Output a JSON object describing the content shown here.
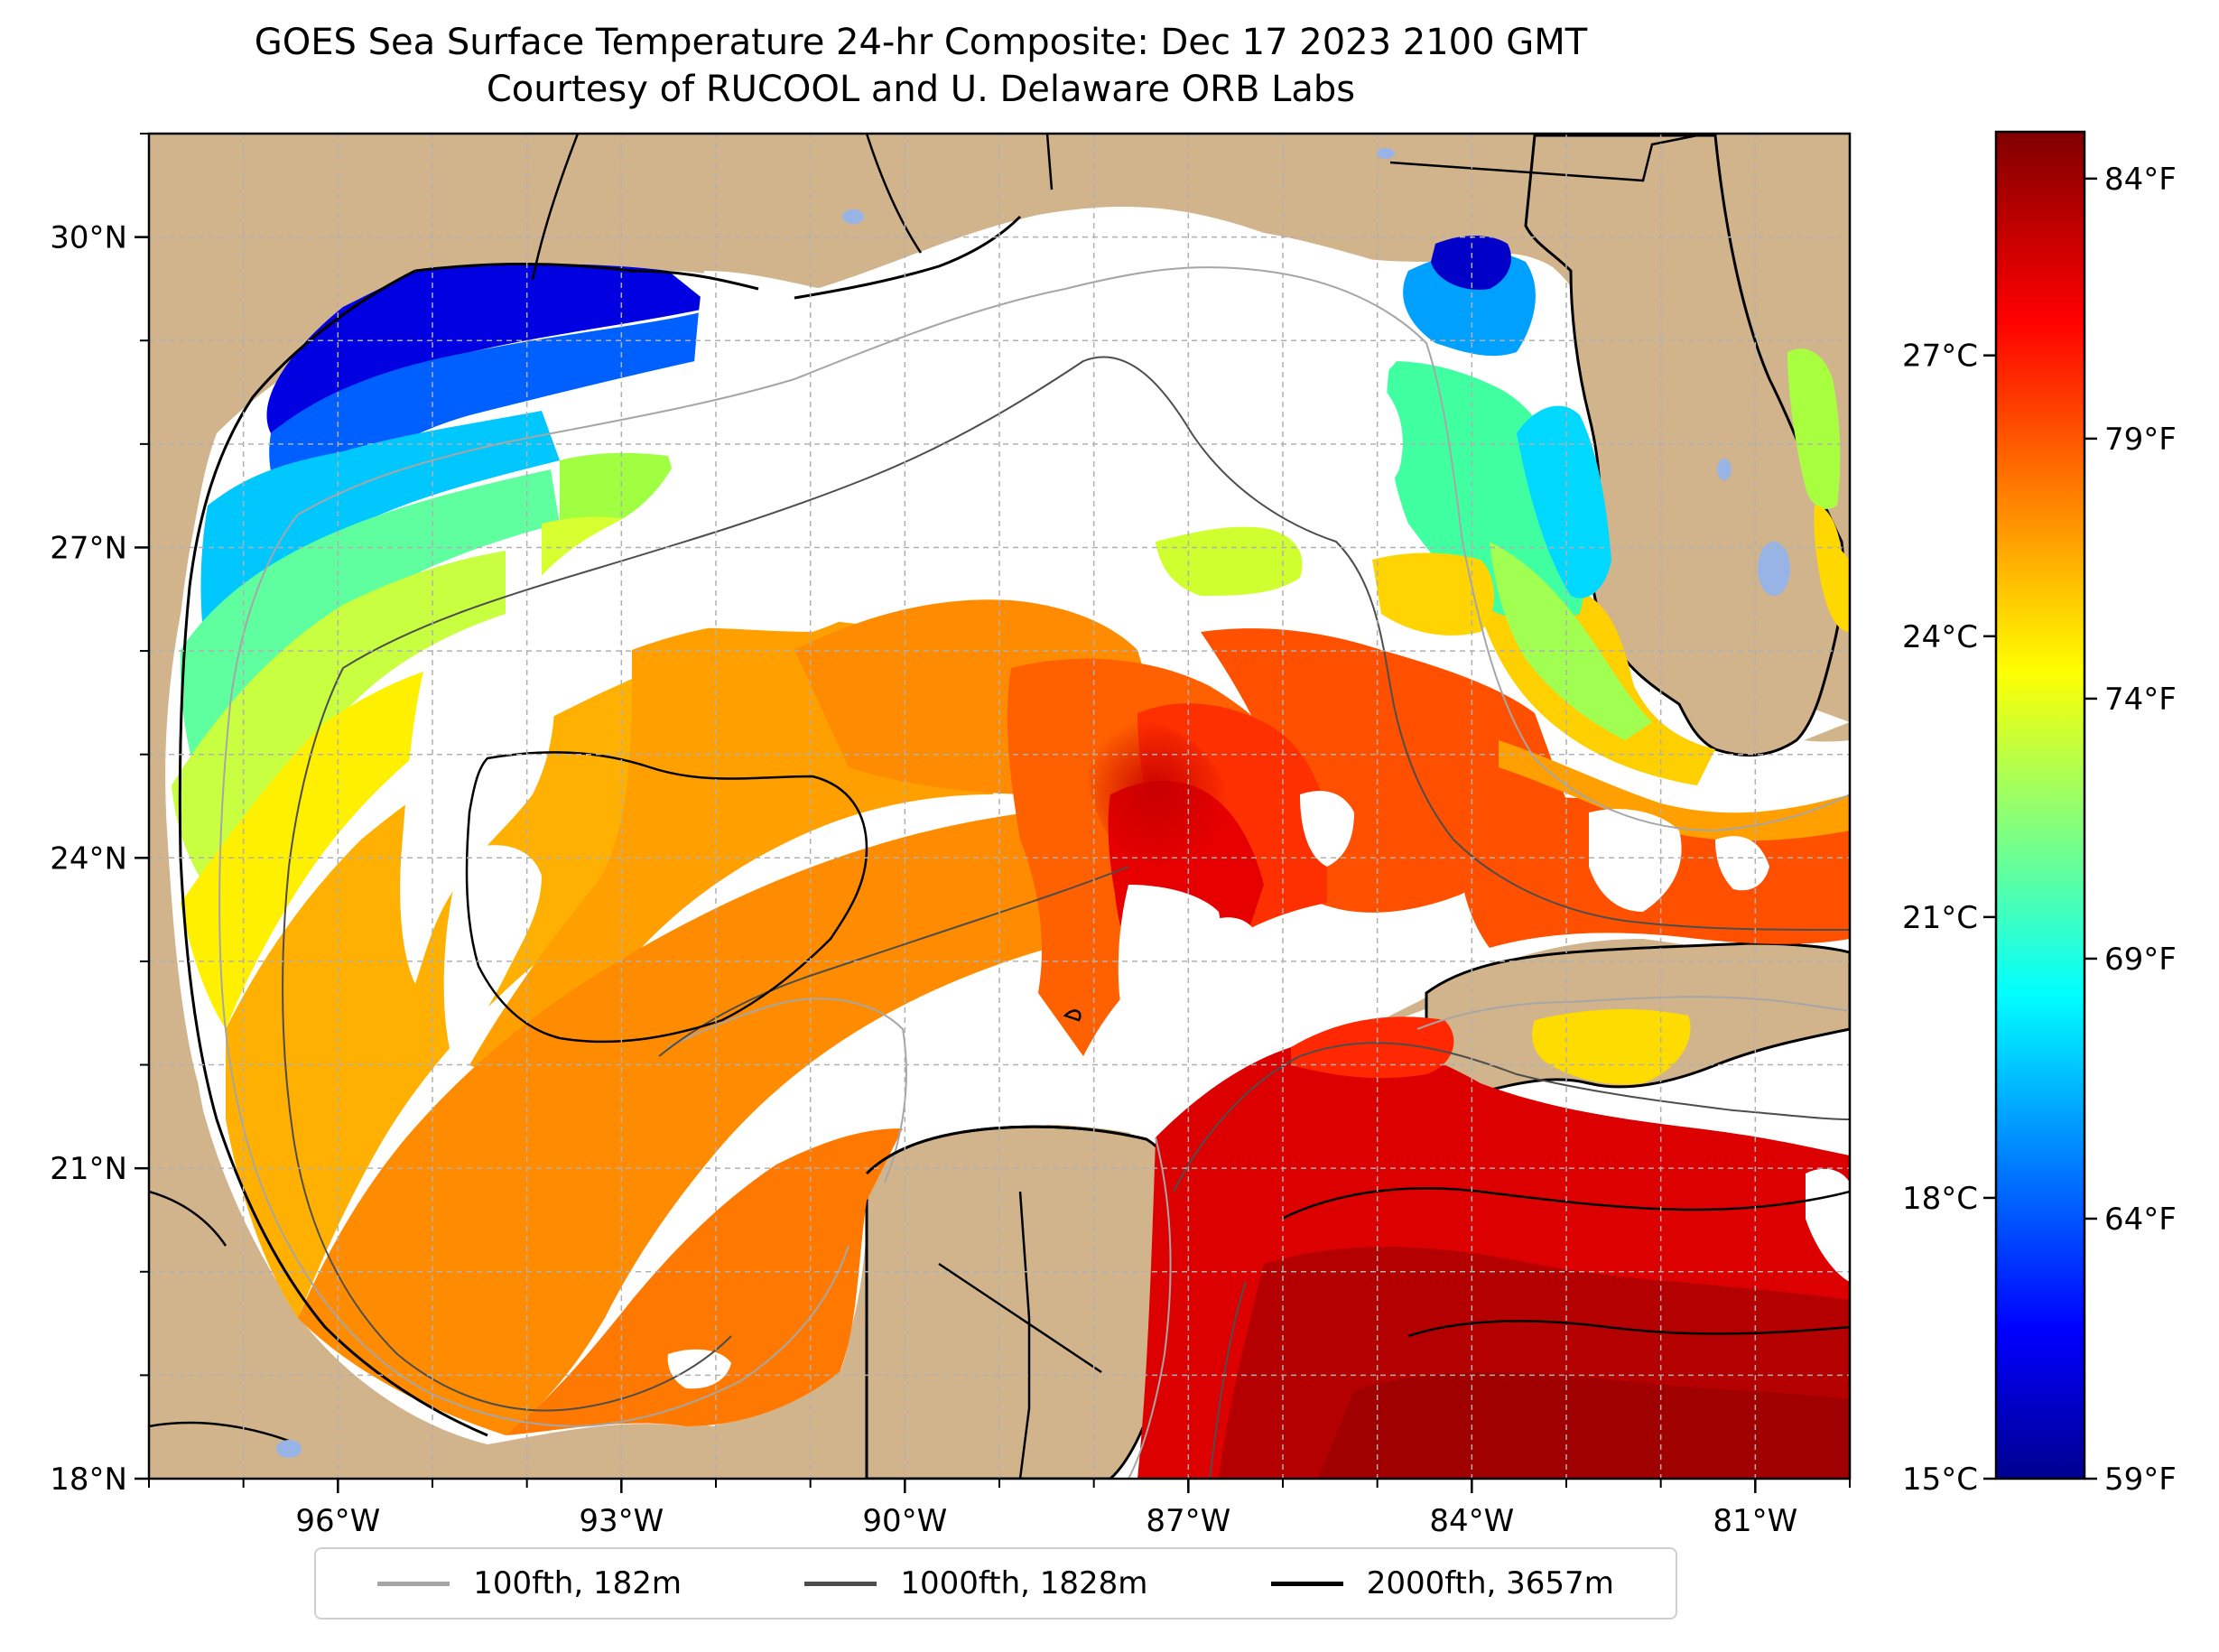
{
  "title_line1": "GOES Sea Surface Temperature 24-hr Composite: Dec 17 2023 2100 GMT",
  "title_line2": "Courtesy of RUCOOL and U. Delaware ORB Labs",
  "map": {
    "lon_ticks": [
      {
        "value": -96,
        "label": "96°W"
      },
      {
        "value": -93,
        "label": "93°W"
      },
      {
        "value": -90,
        "label": "90°W"
      },
      {
        "value": -87,
        "label": "87°W"
      },
      {
        "value": -84,
        "label": "84°W"
      },
      {
        "value": -81,
        "label": "81°W"
      }
    ],
    "lat_ticks": [
      {
        "value": 30,
        "label": "30°N"
      },
      {
        "value": 27,
        "label": "27°N"
      },
      {
        "value": 24,
        "label": "24°N"
      },
      {
        "value": 21,
        "label": "21°N"
      },
      {
        "value": 18,
        "label": "18°N"
      }
    ],
    "lon_range": [
      -98,
      -80
    ],
    "lat_range": [
      18,
      31
    ],
    "colors": {
      "land": "#d2b48c",
      "no_data": "#ffffff",
      "lakes": "#98b4e6",
      "grid": "#b0b0b0"
    }
  },
  "colorbar": {
    "colormap": "jet",
    "celsius_ticks": [
      {
        "value": 27,
        "label": "27°C"
      },
      {
        "value": 24,
        "label": "24°C"
      },
      {
        "value": 21,
        "label": "21°C"
      },
      {
        "value": 18,
        "label": "18°C"
      },
      {
        "value": 15,
        "label": "15°C"
      }
    ],
    "fahrenheit_ticks": [
      {
        "value": 84,
        "label": "84°F"
      },
      {
        "value": 79,
        "label": "79°F"
      },
      {
        "value": 74,
        "label": "74°F"
      },
      {
        "value": 69,
        "label": "69°F"
      },
      {
        "value": 64,
        "label": "64°F"
      },
      {
        "value": 59,
        "label": "59°F"
      }
    ],
    "range_f": [
      59,
      84.9
    ]
  },
  "legend": [
    {
      "label": "100fth, 182m",
      "color": "#a6a6a6"
    },
    {
      "label": "1000fth, 1828m",
      "color": "#4d4d4d"
    },
    {
      "label": "2000fth, 3657m",
      "color": "#000000"
    }
  ]
}
